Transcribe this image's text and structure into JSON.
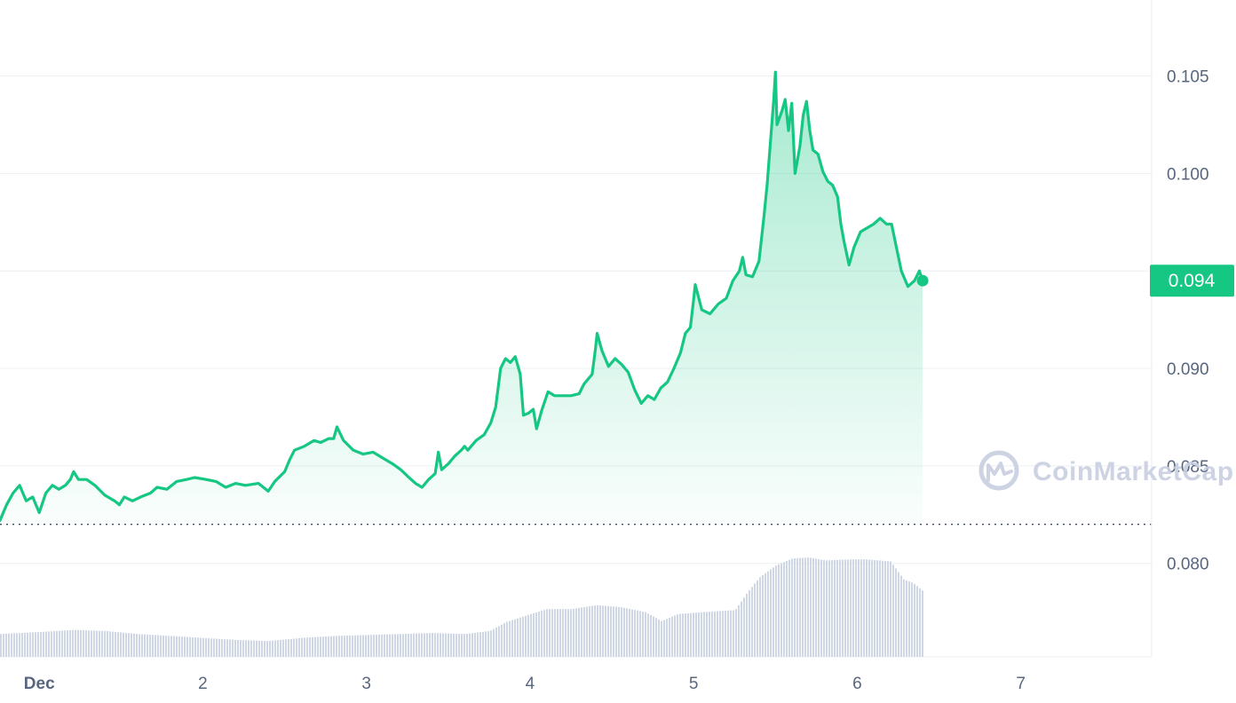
{
  "chart_data": {
    "type": "area",
    "y_ticks": [
      "0.080",
      "0.085",
      "0.090",
      "0.095",
      "0.100",
      "0.105"
    ],
    "ylim": [
      0.0752,
      0.1089
    ],
    "x_ticks": [
      {
        "label": "Dec",
        "day": 1
      },
      {
        "label": "2",
        "day": 2
      },
      {
        "label": "3",
        "day": 3
      },
      {
        "label": "4",
        "day": 4
      },
      {
        "label": "5",
        "day": 5
      },
      {
        "label": "6",
        "day": 6
      },
      {
        "label": "7",
        "day": 7
      }
    ],
    "xlim": [
      0.76,
      7.8
    ],
    "reference_price": 0.082,
    "current_price_label": "0.094",
    "current_price": 0.0945,
    "grid": true,
    "colors": {
      "line": "#16c784",
      "area_top": "#16c784",
      "badge": "#16c784",
      "grid": "#eff2f5",
      "volume": "#cfd6e4",
      "watermark": "#c9cfe0"
    },
    "price_series": [
      [
        0.76,
        0.0822
      ],
      [
        0.8,
        0.083
      ],
      [
        0.84,
        0.0836
      ],
      [
        0.88,
        0.084
      ],
      [
        0.92,
        0.0832
      ],
      [
        0.96,
        0.0834
      ],
      [
        1.0,
        0.0826
      ],
      [
        1.04,
        0.0836
      ],
      [
        1.08,
        0.084
      ],
      [
        1.12,
        0.0838
      ],
      [
        1.16,
        0.084
      ],
      [
        1.19,
        0.0843
      ],
      [
        1.21,
        0.0847
      ],
      [
        1.24,
        0.0843
      ],
      [
        1.29,
        0.0843
      ],
      [
        1.34,
        0.084
      ],
      [
        1.4,
        0.0835
      ],
      [
        1.46,
        0.0832
      ],
      [
        1.49,
        0.083
      ],
      [
        1.52,
        0.0834
      ],
      [
        1.57,
        0.0832
      ],
      [
        1.62,
        0.0834
      ],
      [
        1.68,
        0.0836
      ],
      [
        1.72,
        0.0839
      ],
      [
        1.78,
        0.0838
      ],
      [
        1.84,
        0.0842
      ],
      [
        1.9,
        0.0843
      ],
      [
        1.95,
        0.0844
      ],
      [
        2.02,
        0.0843
      ],
      [
        2.08,
        0.0842
      ],
      [
        2.14,
        0.0839
      ],
      [
        2.2,
        0.0841
      ],
      [
        2.26,
        0.084
      ],
      [
        2.34,
        0.0841
      ],
      [
        2.4,
        0.0837
      ],
      [
        2.44,
        0.0842
      ],
      [
        2.5,
        0.0847
      ],
      [
        2.53,
        0.0853
      ],
      [
        2.56,
        0.0858
      ],
      [
        2.62,
        0.086
      ],
      [
        2.68,
        0.0863
      ],
      [
        2.72,
        0.0862
      ],
      [
        2.77,
        0.0864
      ],
      [
        2.8,
        0.0864
      ],
      [
        2.82,
        0.087
      ],
      [
        2.86,
        0.0863
      ],
      [
        2.92,
        0.0858
      ],
      [
        2.98,
        0.0856
      ],
      [
        3.04,
        0.0857
      ],
      [
        3.1,
        0.0854
      ],
      [
        3.16,
        0.0851
      ],
      [
        3.21,
        0.0848
      ],
      [
        3.26,
        0.0844
      ],
      [
        3.3,
        0.0841
      ],
      [
        3.34,
        0.0839
      ],
      [
        3.38,
        0.0843
      ],
      [
        3.42,
        0.0846
      ],
      [
        3.44,
        0.0857
      ],
      [
        3.46,
        0.0848
      ],
      [
        3.5,
        0.0851
      ],
      [
        3.54,
        0.0855
      ],
      [
        3.58,
        0.0858
      ],
      [
        3.6,
        0.086
      ],
      [
        3.62,
        0.0858
      ],
      [
        3.67,
        0.0863
      ],
      [
        3.72,
        0.0866
      ],
      [
        3.76,
        0.0872
      ],
      [
        3.79,
        0.088
      ],
      [
        3.82,
        0.09
      ],
      [
        3.85,
        0.0905
      ],
      [
        3.88,
        0.0903
      ],
      [
        3.91,
        0.0906
      ],
      [
        3.94,
        0.0897
      ],
      [
        3.96,
        0.0876
      ],
      [
        3.99,
        0.0877
      ],
      [
        4.02,
        0.0879
      ],
      [
        4.04,
        0.0869
      ],
      [
        4.07,
        0.0878
      ],
      [
        4.11,
        0.0888
      ],
      [
        4.15,
        0.0886
      ],
      [
        4.2,
        0.0886
      ],
      [
        4.25,
        0.0886
      ],
      [
        4.3,
        0.0887
      ],
      [
        4.33,
        0.0892
      ],
      [
        4.38,
        0.0897
      ],
      [
        4.4,
        0.091
      ],
      [
        4.41,
        0.0918
      ],
      [
        4.44,
        0.0909
      ],
      [
        4.48,
        0.0901
      ],
      [
        4.52,
        0.0905
      ],
      [
        4.56,
        0.0902
      ],
      [
        4.6,
        0.0898
      ],
      [
        4.64,
        0.0889
      ],
      [
        4.68,
        0.0882
      ],
      [
        4.72,
        0.0886
      ],
      [
        4.76,
        0.0884
      ],
      [
        4.8,
        0.089
      ],
      [
        4.84,
        0.0893
      ],
      [
        4.88,
        0.09
      ],
      [
        4.92,
        0.0908
      ],
      [
        4.95,
        0.0918
      ],
      [
        4.98,
        0.0921
      ],
      [
        5.0,
        0.0935
      ],
      [
        5.01,
        0.0943
      ],
      [
        5.05,
        0.093
      ],
      [
        5.1,
        0.0928
      ],
      [
        5.15,
        0.0933
      ],
      [
        5.2,
        0.0936
      ],
      [
        5.24,
        0.0945
      ],
      [
        5.28,
        0.095
      ],
      [
        5.3,
        0.0957
      ],
      [
        5.32,
        0.0948
      ],
      [
        5.36,
        0.0947
      ],
      [
        5.4,
        0.0955
      ],
      [
        5.43,
        0.0978
      ],
      [
        5.45,
        0.0995
      ],
      [
        5.49,
        0.1038
      ],
      [
        5.5,
        0.1052
      ],
      [
        5.51,
        0.1025
      ],
      [
        5.54,
        0.1032
      ],
      [
        5.56,
        0.1038
      ],
      [
        5.58,
        0.1022
      ],
      [
        5.6,
        0.1036
      ],
      [
        5.62,
        0.1
      ],
      [
        5.65,
        0.1014
      ],
      [
        5.67,
        0.103
      ],
      [
        5.69,
        0.1037
      ],
      [
        5.71,
        0.1022
      ],
      [
        5.73,
        0.1012
      ],
      [
        5.76,
        0.101
      ],
      [
        5.79,
        0.1001
      ],
      [
        5.82,
        0.0996
      ],
      [
        5.85,
        0.0994
      ],
      [
        5.88,
        0.0988
      ],
      [
        5.9,
        0.0974
      ],
      [
        5.92,
        0.0965
      ],
      [
        5.95,
        0.0953
      ],
      [
        5.98,
        0.0962
      ],
      [
        6.02,
        0.097
      ],
      [
        6.06,
        0.0972
      ],
      [
        6.1,
        0.0974
      ],
      [
        6.14,
        0.0977
      ],
      [
        6.18,
        0.0974
      ],
      [
        6.21,
        0.0974
      ],
      [
        6.24,
        0.0962
      ],
      [
        6.27,
        0.095
      ],
      [
        6.31,
        0.0942
      ],
      [
        6.35,
        0.0945
      ],
      [
        6.38,
        0.095
      ],
      [
        6.4,
        0.0945
      ]
    ],
    "volume_series": [
      [
        0.76,
        0.23
      ],
      [
        1.0,
        0.25
      ],
      [
        1.2,
        0.27
      ],
      [
        1.4,
        0.26
      ],
      [
        1.6,
        0.23
      ],
      [
        1.8,
        0.21
      ],
      [
        2.0,
        0.19
      ],
      [
        2.2,
        0.17
      ],
      [
        2.4,
        0.16
      ],
      [
        2.6,
        0.19
      ],
      [
        2.8,
        0.21
      ],
      [
        3.0,
        0.22
      ],
      [
        3.2,
        0.23
      ],
      [
        3.4,
        0.24
      ],
      [
        3.6,
        0.23
      ],
      [
        3.75,
        0.26
      ],
      [
        3.85,
        0.35
      ],
      [
        4.0,
        0.43
      ],
      [
        4.1,
        0.48
      ],
      [
        4.25,
        0.48
      ],
      [
        4.4,
        0.52
      ],
      [
        4.55,
        0.5
      ],
      [
        4.7,
        0.45
      ],
      [
        4.8,
        0.36
      ],
      [
        4.9,
        0.43
      ],
      [
        5.05,
        0.45
      ],
      [
        5.25,
        0.47
      ],
      [
        5.33,
        0.66
      ],
      [
        5.4,
        0.8
      ],
      [
        5.5,
        0.92
      ],
      [
        5.6,
        0.99
      ],
      [
        5.7,
        1.0
      ],
      [
        5.8,
        0.97
      ],
      [
        5.95,
        0.98
      ],
      [
        6.05,
        0.98
      ],
      [
        6.2,
        0.96
      ],
      [
        6.28,
        0.78
      ],
      [
        6.34,
        0.74
      ],
      [
        6.4,
        0.66
      ]
    ]
  },
  "watermark": {
    "text": "CoinMarketCap",
    "icon": "coinmarketcap-logo-icon"
  }
}
